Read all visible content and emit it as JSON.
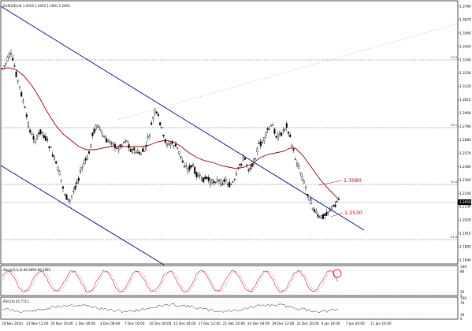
{
  "chart": {
    "title": "EURUSD,H4  1.2016 1.2055 1.2001 1.2050",
    "current_price": "1.2050",
    "price_axis": [
      "1.3780",
      "1.3670",
      "1.3560",
      "1.3450",
      "1.3340",
      "1.3230",
      "1.3120",
      "1.3010",
      "1.2900",
      "1.2790",
      "1.2680",
      "1.2570",
      "1.2460",
      "1.2350",
      "1.2240",
      "1.2130",
      "1.2020",
      "1.1910",
      "1.1800",
      "1.1690"
    ],
    "time_axis": [
      "19 Nov 2010",
      "23 Nov 12:00",
      "26 Nov 16:00",
      "1 Dec 00:00",
      "3 Dec 08:00",
      "7 Dec 16:00",
      "10 Dec 00:00",
      "15 Dec 04:00",
      "17 Dec 12:00",
      "21 Dec 20:00",
      "24 Dec 04:00",
      "29 Dec 12:00",
      "31 Dec 20:00",
      "4 Jan 18:00",
      "7 Jan 04:00",
      "11 Jan 16:00"
    ],
    "fib_levels": [
      {
        "label": "23.6"
      },
      {
        "label": "38.2"
      },
      {
        "label": "50.0"
      },
      {
        "label": "61.8"
      }
    ],
    "callouts": {
      "resistance": "1.3080",
      "support": "1.2530"
    },
    "colors": {
      "channel": "#00008b",
      "moving_average": "#8b0000",
      "fib_line": "#3333aa",
      "callout": "#cc0000",
      "candle": "#000000"
    }
  },
  "stochastic": {
    "title": "Stoch(5,3,3) 80.4956 86.2983",
    "levels": [
      "100",
      "80",
      "20",
      "0"
    ]
  },
  "rsi": {
    "title": "RSI(14) 45.7712",
    "levels": [
      "100",
      "70",
      "30",
      "0"
    ]
  }
}
